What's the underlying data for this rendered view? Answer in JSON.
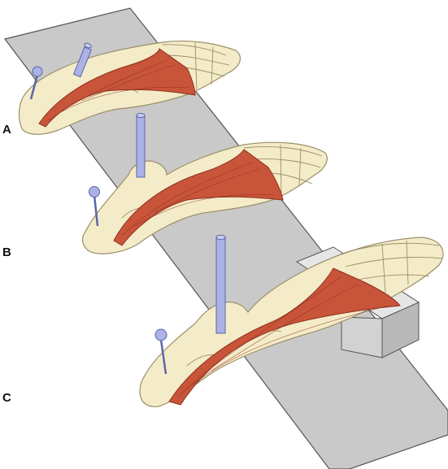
{
  "panels": [
    {
      "label": "A",
      "pin_count": 2
    },
    {
      "label": "B",
      "pin_count": 2
    },
    {
      "label": "C",
      "pin_count": 2
    }
  ],
  "colors": {
    "board": "#c9c9c9",
    "board_stroke": "#555555",
    "bone": "#f4ebc8",
    "bone_stroke": "#9c8f6a",
    "muscle": "#c8553a",
    "muscle_dark": "#8e2f1c",
    "pin": "#aab2e6",
    "pin_stroke": "#5b66a8",
    "block": "#dcdcdc"
  }
}
